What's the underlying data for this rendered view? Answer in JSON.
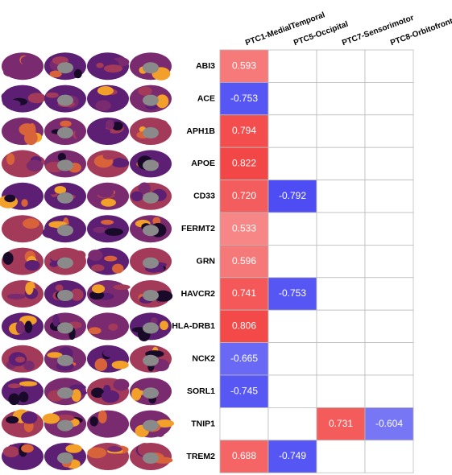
{
  "chart_data": {
    "type": "heatmap",
    "x": [
      "PTC1-MedialTemporal",
      "PTC5-Occipital",
      "PTC7-Sensorimotor",
      "PTC8-Orbitofrontal"
    ],
    "y": [
      "ABI3",
      "ACE",
      "APH1B",
      "APOE",
      "CD33",
      "FERMT2",
      "GRN",
      "HAVCR2",
      "HLA-DRB1",
      "NCK2",
      "SORL1",
      "TNIP1",
      "TREM2"
    ],
    "values": [
      [
        0.593,
        null,
        null,
        null
      ],
      [
        -0.753,
        null,
        null,
        null
      ],
      [
        0.794,
        null,
        null,
        null
      ],
      [
        0.822,
        null,
        null,
        null
      ],
      [
        0.72,
        -0.792,
        null,
        null
      ],
      [
        0.533,
        null,
        null,
        null
      ],
      [
        0.596,
        null,
        null,
        null
      ],
      [
        0.741,
        -0.753,
        null,
        null
      ],
      [
        0.806,
        null,
        null,
        null
      ],
      [
        -0.665,
        null,
        null,
        null
      ],
      [
        -0.745,
        null,
        null,
        null
      ],
      [
        null,
        null,
        0.731,
        -0.604
      ],
      [
        0.688,
        -0.749,
        null,
        null
      ]
    ],
    "value_labels": [
      [
        "0.593",
        null,
        null,
        null
      ],
      [
        "-0.753",
        null,
        null,
        null
      ],
      [
        "0.794",
        null,
        null,
        null
      ],
      [
        "0.822",
        null,
        null,
        null
      ],
      [
        "0.720",
        "-0.792",
        null,
        null
      ],
      [
        "0.533",
        null,
        null,
        null
      ],
      [
        "0.596",
        null,
        null,
        null
      ],
      [
        "0.741",
        "-0.753",
        null,
        null
      ],
      [
        "0.806",
        null,
        null,
        null
      ],
      [
        "-0.665",
        null,
        null,
        null
      ],
      [
        "-0.745",
        null,
        null,
        null
      ],
      [
        null,
        null,
        "0.731",
        "-0.604"
      ],
      [
        "0.688",
        "-0.749",
        null,
        null
      ]
    ],
    "colors": {
      "positive": "#f01e1e",
      "negative": "#1e1ef0"
    }
  }
}
